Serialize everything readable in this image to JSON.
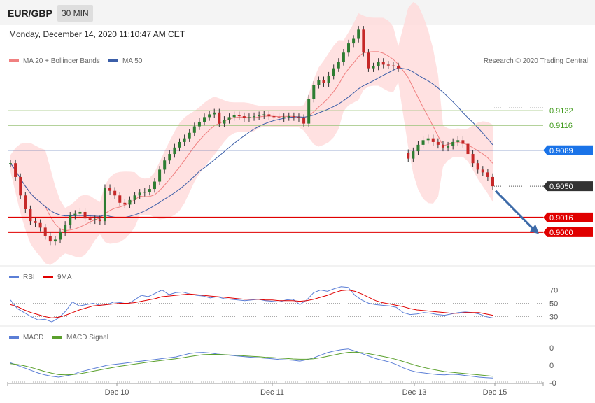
{
  "header": {
    "pair": "EUR/GBP",
    "timeframe": "30 MIN",
    "datetime": "Monday, December 14, 2020 11:10:47 AM CET"
  },
  "legend": {
    "ma20": "MA 20 + Bollinger Bands",
    "ma50": "MA 50",
    "credit": "Research © 2020 Trading Central",
    "rsi": "RSI",
    "rsi_ma": "9MA",
    "macd": "MACD",
    "macd_signal": "MACD Signal"
  },
  "colors": {
    "up": "#2e7d32",
    "down": "#c62828",
    "band": "#ffd9d9",
    "ma20": "#f08080",
    "ma50": "#3b5ea8",
    "blue_level": "#1a73e8",
    "red_level": "#e00000",
    "green_level": "#9bc47a",
    "dark": "#333333",
    "arrow": "#3d6aa8",
    "rsi": "#5b7ed6",
    "rsi_ma": "#e00000",
    "macd": "#5b7ed6",
    "macd_signal": "#5aa02c"
  },
  "chart_data": [
    {
      "type": "candlestick",
      "title": "EUR/GBP",
      "x_ticks": [
        "Dec 10",
        "Dec 11",
        "Dec 13",
        "Dec 15"
      ],
      "ylim": [
        0.8965,
        0.918
      ],
      "levels": [
        {
          "value": 0.9132,
          "label": "0.9132",
          "style": "green"
        },
        {
          "value": 0.9116,
          "label": "0.9116",
          "style": "green"
        },
        {
          "value": 0.9089,
          "label": "0.9089",
          "style": "blue"
        },
        {
          "value": 0.905,
          "label": "0.9050",
          "style": "dark"
        },
        {
          "value": 0.9016,
          "label": "0.9016",
          "style": "red"
        },
        {
          "value": 0.9,
          "label": "0.9000",
          "style": "red"
        }
      ],
      "forecast_arrow": {
        "from": 0.9045,
        "to": 0.8998
      },
      "close_path": [
        0.9075,
        0.906,
        0.904,
        0.9025,
        0.9012,
        0.901,
        0.9005,
        0.8996,
        0.899,
        0.8992,
        0.9,
        0.9008,
        0.9018,
        0.902,
        0.9022,
        0.9015,
        0.9013,
        0.9014,
        0.9012,
        0.9048,
        0.9045,
        0.904,
        0.9032,
        0.903,
        0.9035,
        0.904,
        0.9043,
        0.9044,
        0.9047,
        0.9055,
        0.9068,
        0.9078,
        0.9085,
        0.9092,
        0.9098,
        0.9102,
        0.9108,
        0.9115,
        0.912,
        0.9125,
        0.9128,
        0.913,
        0.9118,
        0.9122,
        0.9125,
        0.9127,
        0.9126,
        0.9124,
        0.9125,
        0.9126,
        0.9127,
        0.9128,
        0.9126,
        0.9125,
        0.9124,
        0.9125,
        0.9126,
        0.9125,
        0.9124,
        0.9118,
        0.9145,
        0.916,
        0.9165,
        0.9162,
        0.917,
        0.9178,
        0.9185,
        0.9195,
        0.9205,
        0.921,
        0.922,
        0.9195,
        0.9178,
        0.918,
        0.9185,
        0.9182,
        0.9181,
        0.918,
        0.9178,
        null,
        0.908,
        0.9088,
        0.9095,
        0.91,
        0.9102,
        0.9098,
        0.9095,
        0.9092,
        0.9094,
        0.9098,
        0.91,
        0.9096,
        0.9085,
        0.9075,
        0.9068,
        0.9065,
        0.906,
        0.905
      ]
    },
    {
      "type": "line",
      "title": "RSI",
      "levels": [
        70,
        50,
        30
      ],
      "ylim": [
        20,
        80
      ],
      "series": [
        {
          "name": "RSI",
          "values": [
            55,
            42,
            36,
            30,
            25,
            26,
            22,
            28,
            38,
            52,
            46,
            48,
            50,
            47,
            48,
            52,
            51,
            49,
            55,
            62,
            60,
            65,
            70,
            63,
            66,
            67,
            64,
            62,
            61,
            58,
            60,
            57,
            56,
            55,
            54,
            55,
            56,
            54,
            53,
            52,
            55,
            56,
            48,
            55,
            66,
            70,
            68,
            72,
            75,
            74,
            62,
            55,
            50,
            48,
            47,
            46,
            44,
            36,
            33,
            34,
            36,
            35,
            33,
            32,
            34,
            36,
            37,
            36,
            34,
            30,
            28
          ]
        },
        {
          "name": "9MA",
          "values": [
            48,
            45,
            40,
            36,
            33,
            30,
            28,
            29,
            32,
            36,
            40,
            43,
            46,
            47,
            48,
            49,
            50,
            50,
            51,
            53,
            55,
            57,
            60,
            61,
            62,
            63,
            64,
            63,
            62,
            61,
            60,
            59,
            58,
            57,
            56,
            56,
            56,
            55,
            55,
            54,
            54,
            54,
            53,
            54,
            56,
            59,
            62,
            66,
            69,
            70,
            68,
            64,
            59,
            54,
            51,
            49,
            47,
            45,
            42,
            40,
            39,
            38,
            37,
            36,
            35,
            35,
            36,
            36,
            36,
            34,
            32
          ]
        }
      ]
    },
    {
      "type": "line",
      "title": "MACD",
      "y_ticks": [
        "0",
        "0",
        "-0"
      ],
      "ylim": [
        -1.1,
        1.1
      ],
      "series": [
        {
          "name": "MACD",
          "values": [
            0.0,
            -0.15,
            -0.3,
            -0.45,
            -0.6,
            -0.72,
            -0.8,
            -0.85,
            -0.78,
            -0.7,
            -0.55,
            -0.45,
            -0.35,
            -0.25,
            -0.15,
            -0.1,
            -0.05,
            0.0,
            0.05,
            0.1,
            0.15,
            0.2,
            0.25,
            0.3,
            0.35,
            0.45,
            0.55,
            0.6,
            0.62,
            0.58,
            0.52,
            0.48,
            0.44,
            0.4,
            0.36,
            0.33,
            0.3,
            0.27,
            0.24,
            0.2,
            0.18,
            0.15,
            0.1,
            0.18,
            0.3,
            0.45,
            0.6,
            0.7,
            0.78,
            0.82,
            0.7,
            0.55,
            0.4,
            0.25,
            0.15,
            0.05,
            -0.1,
            -0.3,
            -0.45,
            -0.55,
            -0.6,
            -0.65,
            -0.7,
            -0.72,
            -0.68,
            -0.7,
            -0.75,
            -0.8,
            -0.85,
            -0.88,
            -0.9
          ]
        },
        {
          "name": "MACD Signal",
          "values": [
            -0.05,
            -0.1,
            -0.18,
            -0.28,
            -0.4,
            -0.52,
            -0.62,
            -0.7,
            -0.72,
            -0.7,
            -0.65,
            -0.58,
            -0.5,
            -0.42,
            -0.34,
            -0.27,
            -0.2,
            -0.14,
            -0.08,
            -0.02,
            0.04,
            0.09,
            0.14,
            0.19,
            0.24,
            0.3,
            0.37,
            0.43,
            0.48,
            0.5,
            0.5,
            0.48,
            0.46,
            0.44,
            0.41,
            0.38,
            0.36,
            0.33,
            0.31,
            0.28,
            0.26,
            0.23,
            0.21,
            0.21,
            0.24,
            0.3,
            0.38,
            0.47,
            0.55,
            0.62,
            0.63,
            0.6,
            0.54,
            0.46,
            0.38,
            0.3,
            0.2,
            0.08,
            -0.05,
            -0.17,
            -0.28,
            -0.37,
            -0.45,
            -0.52,
            -0.56,
            -0.6,
            -0.64,
            -0.68,
            -0.72,
            -0.76,
            -0.8
          ]
        }
      ]
    }
  ]
}
